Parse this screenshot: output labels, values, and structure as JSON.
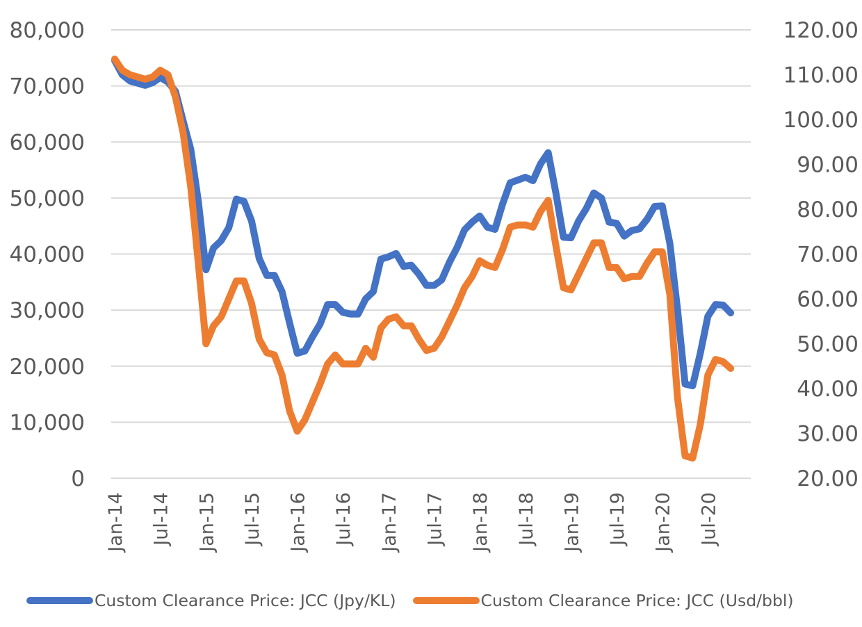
{
  "chart_data": {
    "type": "line",
    "title": "",
    "xlabel": "",
    "ylabel": "",
    "y2label": "",
    "grid": true,
    "legend_position": "bottom",
    "x_tick_labels": [
      "Jan-14",
      "Jul-14",
      "Jan-15",
      "Jul-15",
      "Jan-16",
      "Jul-16",
      "Jan-17",
      "Jul-17",
      "Jan-18",
      "Jul-18",
      "Jan-19",
      "Jul-19",
      "Jan-20",
      "Jul-20"
    ],
    "x_start": "Jan-14",
    "x_end": "Oct-20",
    "ylim": [
      0,
      80000
    ],
    "yticks": [
      "0",
      "10,000",
      "20,000",
      "30,000",
      "40,000",
      "50,000",
      "60,000",
      "70,000",
      "80,000"
    ],
    "y2lim": [
      20,
      120
    ],
    "y2ticks": [
      "20.00",
      "30.00",
      "40.00",
      "50.00",
      "60.00",
      "70.00",
      "80.00",
      "90.00",
      "100.00",
      "110.00",
      "120.00"
    ],
    "series": [
      {
        "name": "Custom Clearance Price: JCC (Jpy/KL)",
        "axis": "left",
        "color": "#4472C4",
        "values": [
          74500,
          72000,
          70900,
          70500,
          70100,
          70600,
          71500,
          70700,
          69000,
          63700,
          58700,
          49400,
          37200,
          41100,
          42400,
          44700,
          49800,
          49400,
          45900,
          39200,
          36200,
          36200,
          33300,
          27700,
          22300,
          22700,
          25200,
          27500,
          31000,
          31000,
          29600,
          29300,
          29300,
          32000,
          33300,
          39100,
          39500,
          40100,
          37800,
          38000,
          36400,
          34400,
          34400,
          35400,
          38500,
          41100,
          44300,
          45700,
          46800,
          44800,
          44400,
          48900,
          52700,
          53200,
          53700,
          53100,
          56100,
          58100,
          51000,
          43000,
          42900,
          45900,
          48100,
          50900,
          50000,
          45700,
          45500,
          43200,
          44200,
          44500,
          46200,
          48500,
          48600,
          41900,
          30100,
          16800,
          16500,
          22300,
          28900,
          31000,
          30900,
          29500
        ]
      },
      {
        "name": "Custom Clearance Price: JCC (Usd/bbl)",
        "axis": "right",
        "color": "#ED7D31",
        "values": [
          113.5,
          111,
          110,
          109.5,
          109,
          109.5,
          111,
          110,
          105,
          97,
          85,
          68,
          50,
          54,
          56,
          60,
          64,
          64,
          59,
          51,
          48,
          47.5,
          43,
          35,
          30.5,
          33,
          37,
          41,
          45.5,
          47.5,
          45.5,
          45.5,
          45.5,
          49,
          47,
          53.5,
          55.5,
          56,
          54,
          54,
          51,
          48.5,
          49,
          51.5,
          55,
          58.5,
          62.5,
          65,
          68.5,
          67.5,
          67,
          71,
          76,
          76.5,
          76.5,
          76,
          79.5,
          82,
          72,
          62.5,
          62,
          65.5,
          69,
          72.5,
          72.5,
          67,
          67,
          64.5,
          65,
          65,
          68,
          70.5,
          70.5,
          61,
          38,
          25,
          24.5,
          32,
          43,
          46.5,
          46,
          44.5
        ]
      }
    ]
  },
  "legend": {
    "items": [
      {
        "label": "Custom Clearance Price: JCC (Jpy/KL)",
        "color": "#4472C4"
      },
      {
        "label": "Custom Clearance Price: JCC (Usd/bbl)",
        "color": "#ED7D31"
      }
    ]
  }
}
